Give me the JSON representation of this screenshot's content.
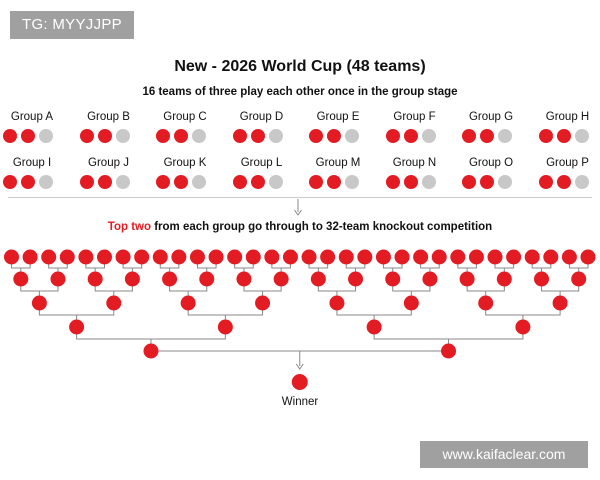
{
  "badge": {
    "text": "TG: MYYJJPP"
  },
  "watermark": {
    "text": "www.kaifaclear.com"
  },
  "title": "New - 2026 World Cup (48 teams)",
  "subtitle": "16 teams of three play each other once in the group stage",
  "groups": [
    "Group A",
    "Group B",
    "Group C",
    "Group D",
    "Group E",
    "Group F",
    "Group G",
    "Group H",
    "Group I",
    "Group J",
    "Group K",
    "Group L",
    "Group M",
    "Group N",
    "Group O",
    "Group P"
  ],
  "teams_per_group": 3,
  "advancing_per_group": 2,
  "knockout": {
    "highlight": "Top two",
    "rest": " from each group go through to 32-team knockout competition"
  },
  "bracket": {
    "rounds": [
      32,
      16,
      8,
      4,
      2,
      1
    ]
  },
  "winner_label": "Winner",
  "colors": {
    "advancing": "#e31b23",
    "eliminated": "#c8c8c8",
    "line": "#888888",
    "divider": "#cccccc"
  }
}
